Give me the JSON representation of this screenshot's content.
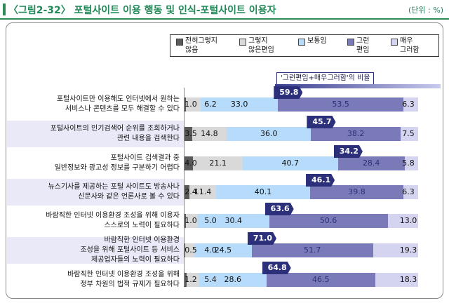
{
  "header": {
    "title": "〈그림2-32〉 포털사이트 이용 행동 및 인식-포털사이트 이용자",
    "unit": "(단위 : %)"
  },
  "legend": [
    {
      "label": "전혀그렇지\n않음",
      "color": "#5a5a5a"
    },
    {
      "label": "그렇지\n않은편임",
      "color": "#d9d9d9"
    },
    {
      "label": "보통임",
      "color": "#b7dcfb"
    },
    {
      "label": "그런\n편임",
      "color": "#7b7ab8"
    },
    {
      "label": "매우\n그러함",
      "color": "#d4d4f0"
    }
  ],
  "ratio_label": "'그런편임+매우그러함'의 비율",
  "chart_data": {
    "type": "bar",
    "stacked": true,
    "orientation": "horizontal",
    "title": "〈그림2-32〉 포털사이트 이용 행동 및 인식-포털사이트 이용자",
    "unit": "(단위 : %)",
    "categories": [
      "포털사이트만 이용해도 인터넷에서 원하는\n서비스나 콘텐츠를 모두 해결할 수 있다",
      "포털사이트의 인기검색어 순위를 조회하거나\n관련 내용을 검색한다",
      "포털사이트 검색결과 중\n일반정보와 광고성 정보를 구분하기 어렵다",
      "뉴스기사를 제공하는 포털 사이트도 방송사나\n신문사와 같은 언론사로 볼 수 있다",
      "바람직한 인터넷 이용환경 조성을 위해 이용자\n스스로의 노력이 필요하다",
      "바람직한 인터넷 이용환경\n조성을 위해 포털사이트 등 서비스\n제공업자들의 노력이 필요하다",
      "바람직한 인터넷 이용환경 조성을 위해\n정부 차원의 법적 규제가 필요하다"
    ],
    "series": [
      {
        "name": "전혀그렇지 않음",
        "values": [
          1.0,
          3.5,
          4.0,
          2.4,
          1.0,
          0.5,
          1.2
        ]
      },
      {
        "name": "그렇지 않은편임",
        "values": [
          6.2,
          14.8,
          21.1,
          11.4,
          5.0,
          4.0,
          5.4
        ]
      },
      {
        "name": "보통임",
        "values": [
          33.0,
          36.0,
          40.7,
          40.1,
          30.4,
          24.5,
          28.6
        ]
      },
      {
        "name": "그런편임",
        "values": [
          53.5,
          38.2,
          28.4,
          39.8,
          50.6,
          51.7,
          46.5
        ]
      },
      {
        "name": "매우그러함",
        "values": [
          6.3,
          7.5,
          5.8,
          6.3,
          13.0,
          19.3,
          18.3
        ]
      }
    ],
    "positive_ratio": {
      "label": "'그런편임+매우그러함'의 비율",
      "values": [
        59.8,
        45.7,
        34.2,
        46.1,
        63.6,
        71.0,
        64.8
      ]
    },
    "xlim": [
      0,
      100
    ]
  }
}
